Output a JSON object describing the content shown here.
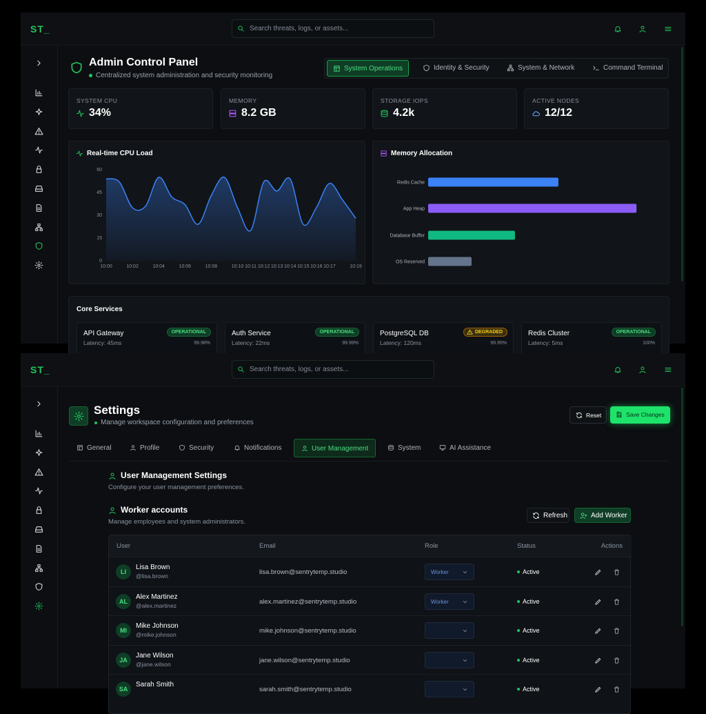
{
  "header": {
    "logo": "ST_",
    "search_placeholder": "Search threats, logs, or assets..."
  },
  "dashboard": {
    "title": "Admin Control Panel",
    "subtitle": "Centralized system administration and security monitoring",
    "tabs": [
      {
        "label": "System Operations",
        "active": true
      },
      {
        "label": "Identity & Security"
      },
      {
        "label": "System & Network"
      },
      {
        "label": "Command Terminal"
      }
    ],
    "stats": [
      {
        "label": "SYSTEM CPU",
        "value": "34%"
      },
      {
        "label": "MEMORY",
        "value": "8.2 GB"
      },
      {
        "label": "STORAGE IOPS",
        "value": "4.2k"
      },
      {
        "label": "ACTIVE NODES",
        "value": "12/12"
      }
    ],
    "services_title": "Core Services",
    "services": [
      {
        "name": "API Gateway",
        "status": "OPERATIONAL",
        "latency": "Latency: 45ms",
        "uptime": "99.98%"
      },
      {
        "name": "Auth Service",
        "status": "OPERATIONAL",
        "latency": "Latency: 22ms",
        "uptime": "99.99%"
      },
      {
        "name": "PostgreSQL DB",
        "status": "DEGRADED",
        "latency": "Latency: 120ms",
        "uptime": "99.95%"
      },
      {
        "name": "Redis Cluster",
        "status": "OPERATIONAL",
        "latency": "Latency: 5ms",
        "uptime": "100%"
      }
    ]
  },
  "chart_data": [
    {
      "type": "line",
      "title": "Real-time CPU Load",
      "categories": [
        "10:00",
        null,
        "10:02",
        null,
        "10:04",
        null,
        "10:06",
        null,
        "10:08",
        null,
        "10:10",
        "10:11",
        "10:12",
        "10:13",
        "10:14",
        "10:15",
        "10:16",
        "10:17",
        null,
        "10:19"
      ],
      "values": [
        54,
        52,
        35,
        36,
        55,
        42,
        37,
        24,
        43,
        55,
        35,
        20,
        52,
        46,
        54,
        24,
        35,
        51,
        40,
        28
      ],
      "color": "#3b82f6",
      "ylim": [
        0,
        60
      ],
      "yticks": [
        0,
        15,
        30,
        45,
        60
      ]
    },
    {
      "type": "bar",
      "orientation": "horizontal",
      "title": "Memory Allocation",
      "categories": [
        "Redis Cache",
        "App Heap",
        "Database Buffer",
        "OS Reserved"
      ],
      "values": [
        1.5,
        2.4,
        1.0,
        0.5
      ],
      "colors": [
        "#3b82f6",
        "#8b5cf6",
        "#10b981",
        "#64748b"
      ],
      "xlim": [
        0,
        2.7
      ]
    }
  ],
  "settings": {
    "title": "Settings",
    "subtitle": "Manage workspace configuration and preferences",
    "reset": "Reset",
    "save": "Save Changes",
    "tabs": [
      {
        "label": "General"
      },
      {
        "label": "Profile"
      },
      {
        "label": "Security"
      },
      {
        "label": "Notifications"
      },
      {
        "label": "User Management",
        "active": true
      },
      {
        "label": "System"
      },
      {
        "label": "AI Assistance"
      }
    ],
    "section": {
      "title": "User Management Settings",
      "description": "Configure your user management preferences."
    },
    "workers": {
      "title": "Worker accounts",
      "description": "Manage employees and system administrators.",
      "refresh": "Refresh",
      "add": "Add Worker",
      "columns": [
        "User",
        "Email",
        "Role",
        "Status",
        "Actions"
      ],
      "rows": [
        {
          "initials": "LI",
          "name": "Lisa Brown",
          "handle": "@lisa.brown",
          "email": "lisa.brown@sentrytemp.studio",
          "role": "Worker",
          "status": "Active"
        },
        {
          "initials": "AL",
          "name": "Alex Martinez",
          "handle": "@alex.martinez",
          "email": "alex.martinez@sentrytemp.studio",
          "role": "Worker",
          "status": "Active"
        },
        {
          "initials": "MI",
          "name": "Mike Johnson",
          "handle": "@mike.johnson",
          "email": "mike.johnson@sentrytemp.studio",
          "status": "Active"
        },
        {
          "initials": "JA",
          "name": "Jane Wilson",
          "handle": "@jane.wilson",
          "email": "jane.wilson@sentrytemp.studio",
          "status": "Active"
        },
        {
          "initials": "SA",
          "name": "Sarah Smith",
          "email": "sarah.smith@sentrytemp.studio",
          "status": "Active"
        }
      ]
    }
  }
}
